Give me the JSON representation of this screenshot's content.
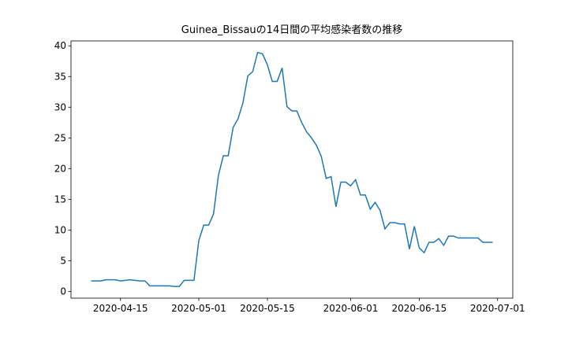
{
  "chart_data": {
    "type": "line",
    "title": "Guinea_Bissauの14日間の平均感染者数の推移",
    "x": [
      "2020-04-09",
      "2020-04-10",
      "2020-04-11",
      "2020-04-12",
      "2020-04-13",
      "2020-04-14",
      "2020-04-15",
      "2020-04-16",
      "2020-04-17",
      "2020-04-18",
      "2020-04-19",
      "2020-04-20",
      "2020-04-21",
      "2020-04-22",
      "2020-04-23",
      "2020-04-24",
      "2020-04-25",
      "2020-04-26",
      "2020-04-27",
      "2020-04-28",
      "2020-04-29",
      "2020-04-30",
      "2020-05-01",
      "2020-05-02",
      "2020-05-03",
      "2020-05-04",
      "2020-05-05",
      "2020-05-06",
      "2020-05-07",
      "2020-05-08",
      "2020-05-09",
      "2020-05-10",
      "2020-05-11",
      "2020-05-12",
      "2020-05-13",
      "2020-05-14",
      "2020-05-15",
      "2020-05-16",
      "2020-05-17",
      "2020-05-18",
      "2020-05-19",
      "2020-05-20",
      "2020-05-21",
      "2020-05-22",
      "2020-05-23",
      "2020-05-24",
      "2020-05-25",
      "2020-05-26",
      "2020-05-27",
      "2020-05-28",
      "2020-05-29",
      "2020-05-30",
      "2020-05-31",
      "2020-06-01",
      "2020-06-02",
      "2020-06-03",
      "2020-06-04",
      "2020-06-05",
      "2020-06-06",
      "2020-06-07",
      "2020-06-08",
      "2020-06-09",
      "2020-06-10",
      "2020-06-11",
      "2020-06-12",
      "2020-06-13",
      "2020-06-14",
      "2020-06-15",
      "2020-06-16",
      "2020-06-17",
      "2020-06-18",
      "2020-06-19",
      "2020-06-20",
      "2020-06-21",
      "2020-06-22",
      "2020-06-23",
      "2020-06-24",
      "2020-06-25",
      "2020-06-26",
      "2020-06-27",
      "2020-06-28",
      "2020-06-29",
      "2020-06-30"
    ],
    "series": [
      {
        "name": "Guinea_Bissau",
        "color": "#1f77b4",
        "values": [
          1.7,
          1.7,
          1.7,
          1.9,
          1.9,
          1.9,
          1.7,
          1.8,
          1.9,
          1.8,
          1.7,
          1.7,
          0.9,
          0.9,
          0.9,
          0.9,
          0.9,
          0.8,
          0.8,
          1.8,
          1.8,
          1.8,
          8.3,
          10.8,
          10.8,
          12.6,
          18.9,
          22.1,
          22.1,
          26.7,
          28.1,
          30.7,
          35.1,
          35.8,
          38.9,
          38.7,
          36.9,
          34.2,
          34.2,
          36.4,
          30.1,
          29.4,
          29.4,
          27.5,
          26.0,
          25.0,
          23.8,
          22.0,
          18.4,
          18.7,
          13.8,
          17.8,
          17.8,
          17.2,
          18.2,
          15.7,
          15.7,
          13.4,
          14.5,
          13.2,
          10.2,
          11.2,
          11.2,
          11.0,
          11.0,
          6.9,
          10.6,
          7.1,
          6.3,
          8.0,
          8.0,
          8.6,
          7.5,
          9.0,
          9.0,
          8.7,
          8.7,
          8.7,
          8.7,
          8.7,
          8.0,
          8.0,
          8.0
        ]
      }
    ],
    "xlim": [
      "2020-04-04T21:36",
      "2020-07-04T02:24"
    ],
    "xticks": [
      "2020-04-15",
      "2020-05-01",
      "2020-05-15",
      "2020-06-01",
      "2020-06-15",
      "2020-07-01"
    ],
    "ylim": [
      -1.1,
      40.8
    ],
    "yticks": [
      0,
      5,
      10,
      15,
      20,
      25,
      30,
      35,
      40
    ]
  }
}
